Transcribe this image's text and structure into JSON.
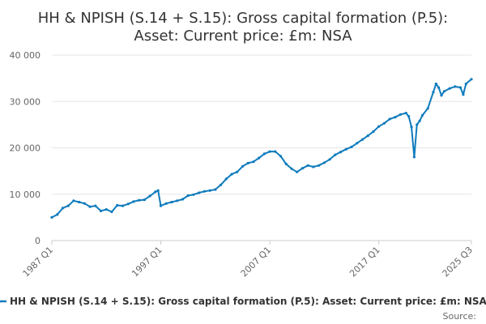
{
  "chart_data": {
    "type": "line",
    "title_lines": [
      "HH & NPISH (S.14 + S.15): Gross capital formation (P.5):",
      "Asset: Current price: £m: NSA"
    ],
    "xlabel": "",
    "ylabel": "",
    "ylim": [
      0,
      40000
    ],
    "y_ticks": [
      0,
      10000,
      20000,
      30000,
      40000
    ],
    "y_tick_labels": [
      "0",
      "10 000",
      "20 000",
      "30 000",
      "40 000"
    ],
    "x_ticks": [
      1987.0,
      1997.0,
      2007.0,
      2017.0,
      2025.5
    ],
    "x_tick_labels": [
      "1987 Q1",
      "1997 Q1",
      "2007 Q1",
      "2017 Q1",
      "2025 Q3"
    ],
    "xlim": [
      1987.0,
      2025.5
    ],
    "grid": true,
    "legend_position": "bottom",
    "colors": {
      "series": "#0e7bbd",
      "grid": "#e6e6e6",
      "axis": "#cccccc"
    },
    "source_label": "Source:",
    "series": [
      {
        "name": "HH & NPISH (S.14 + S.15): Gross capital formation (P.5): Asset: Current price: £m: NSA",
        "x": [
          1987.0,
          1987.5,
          1988.0,
          1988.5,
          1989.0,
          1989.5,
          1990.0,
          1990.5,
          1991.0,
          1991.5,
          1992.0,
          1992.5,
          1993.0,
          1993.5,
          1994.0,
          1994.5,
          1995.0,
          1995.5,
          1996.0,
          1996.5,
          1996.75,
          1997.0,
          1997.5,
          1998.0,
          1998.5,
          1999.0,
          1999.5,
          2000.0,
          2000.5,
          2001.0,
          2001.5,
          2002.0,
          2002.5,
          2003.0,
          2003.5,
          2004.0,
          2004.5,
          2005.0,
          2005.5,
          2006.0,
          2006.5,
          2007.0,
          2007.5,
          2008.0,
          2008.5,
          2009.0,
          2009.5,
          2010.0,
          2010.5,
          2011.0,
          2011.5,
          2012.0,
          2012.5,
          2013.0,
          2013.5,
          2014.0,
          2014.5,
          2015.0,
          2015.5,
          2016.0,
          2016.5,
          2017.0,
          2017.5,
          2018.0,
          2018.5,
          2019.0,
          2019.5,
          2019.75,
          2020.0,
          2020.25,
          2020.5,
          2020.75,
          2021.0,
          2021.5,
          2022.0,
          2022.25,
          2022.5,
          2022.75,
          2023.0,
          2023.5,
          2024.0,
          2024.5,
          2024.75,
          2025.0,
          2025.5
        ],
        "values": [
          5000,
          5600,
          7000,
          7500,
          8600,
          8300,
          8000,
          7300,
          7500,
          6400,
          6700,
          6200,
          7600,
          7500,
          7900,
          8400,
          8700,
          8800,
          9600,
          10500,
          10800,
          7500,
          8000,
          8300,
          8600,
          8900,
          9700,
          9900,
          10300,
          10600,
          10800,
          11000,
          12000,
          13300,
          14300,
          14800,
          16000,
          16700,
          17000,
          17800,
          18700,
          19200,
          19200,
          18200,
          16500,
          15500,
          14800,
          15600,
          16200,
          15900,
          16200,
          16800,
          17500,
          18500,
          19100,
          19700,
          20200,
          21000,
          21800,
          22600,
          23500,
          24600,
          25300,
          26200,
          26600,
          27200,
          27500,
          26800,
          24500,
          18000,
          25000,
          25800,
          27000,
          28500,
          32000,
          33800,
          33000,
          31300,
          32200,
          32800,
          33200,
          33000,
          31500,
          33800,
          34800
        ]
      }
    ]
  }
}
